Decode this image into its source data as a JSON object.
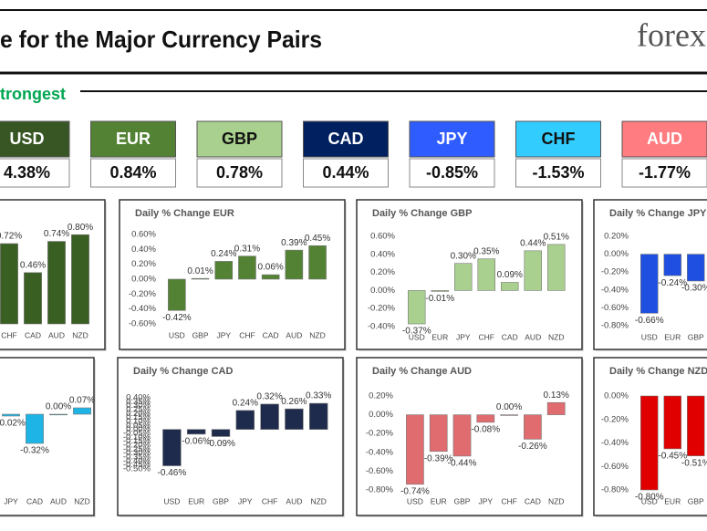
{
  "header": {
    "title": "e for the Major Currency Pairs",
    "logo": "forex"
  },
  "strength_label": "trongest",
  "tiles": [
    {
      "currency": "USD",
      "change": "4.38%",
      "color": "#375623",
      "text_color": "#ffffff"
    },
    {
      "currency": "EUR",
      "change": "0.84%",
      "color": "#548235",
      "text_color": "#ffffff"
    },
    {
      "currency": "GBP",
      "change": "0.78%",
      "color": "#a9d08e",
      "text_color": "#111111"
    },
    {
      "currency": "CAD",
      "change": "0.44%",
      "color": "#002060",
      "text_color": "#ffffff"
    },
    {
      "currency": "JPY",
      "change": "-0.85%",
      "color": "#2f5cff",
      "text_color": "#ffffff"
    },
    {
      "currency": "CHF",
      "change": "-1.53%",
      "color": "#33ccff",
      "text_color": "#111111"
    },
    {
      "currency": "AUD",
      "change": "-1.77%",
      "color": "#ff7c80",
      "text_color": "#ffffff"
    }
  ],
  "chart_data": [
    {
      "type": "bar",
      "categories": [
        "CHF",
        "CAD",
        "AUD",
        "NZD"
      ],
      "values": [
        0.72,
        0.46,
        0.74,
        0.8
      ],
      "value_labels": [
        "0.72%",
        "0.46%",
        "0.74%",
        "0.80%"
      ],
      "color": "#3a5f23",
      "ylim": [
        0,
        0.9
      ]
    },
    {
      "type": "bar",
      "title": "Daily % Change EUR",
      "categories": [
        "USD",
        "GBP",
        "JPY",
        "CHF",
        "CAD",
        "AUD",
        "NZD"
      ],
      "values": [
        -0.42,
        0.01,
        0.24,
        0.31,
        0.06,
        0.39,
        0.45
      ],
      "value_labels": [
        "-0.42%",
        "0.01%",
        "0.24%",
        "0.31%",
        "0.06%",
        "0.39%",
        "0.45%"
      ],
      "color": "#548235",
      "ylim": [
        -0.6,
        0.6
      ],
      "yticks": [
        {
          "value": 0.6,
          "label": "0.60%"
        },
        {
          "value": 0.4,
          "label": "0.40%"
        },
        {
          "value": 0.2,
          "label": "0.20%"
        },
        {
          "value": 0,
          "label": "0.00%"
        },
        {
          "value": -0.2,
          "label": "-0.20%"
        },
        {
          "value": -0.4,
          "label": "-0.40%"
        },
        {
          "value": -0.6,
          "label": "-0.60%"
        }
      ]
    },
    {
      "type": "bar",
      "title": "Daily % Change GBP",
      "categories": [
        "USD",
        "EUR",
        "JPY",
        "CHF",
        "CAD",
        "AUD",
        "NZD"
      ],
      "values": [
        -0.37,
        -0.01,
        0.3,
        0.35,
        0.09,
        0.44,
        0.51
      ],
      "value_labels": [
        "-0.37%",
        "-0.01%",
        "0.30%",
        "0.35%",
        "0.09%",
        "0.44%",
        "0.51%"
      ],
      "color": "#a9d08e",
      "ylim": [
        -0.4,
        0.6
      ],
      "yticks": [
        {
          "value": 0.6,
          "label": "0.60%"
        },
        {
          "value": 0.4,
          "label": "0.40%"
        },
        {
          "value": 0.2,
          "label": "0.20%"
        },
        {
          "value": 0,
          "label": "0.00%"
        },
        {
          "value": -0.2,
          "label": "-0.20%"
        },
        {
          "value": -0.4,
          "label": "-0.40%"
        }
      ]
    },
    {
      "type": "bar",
      "title": "Daily % Change JPY",
      "categories": [
        "USD",
        "EUR",
        "GBP"
      ],
      "values": [
        -0.66,
        -0.24,
        -0.3
      ],
      "value_labels": [
        "-0.66%",
        "-0.24%",
        "-0.30%"
      ],
      "color": "#1f4fe0",
      "ylim": [
        -0.8,
        0.2
      ],
      "yticks": [
        {
          "value": 0.2,
          "label": "0.20%"
        },
        {
          "value": 0,
          "label": "0.00%"
        },
        {
          "value": -0.2,
          "label": "-0.20%"
        },
        {
          "value": -0.4,
          "label": "-0.40%"
        },
        {
          "value": -0.6,
          "label": "-0.60%"
        },
        {
          "value": -0.8,
          "label": "-0.80%"
        }
      ]
    },
    {
      "type": "bar",
      "categories": [
        "JPY",
        "CAD",
        "AUD",
        "NZD"
      ],
      "values": [
        -0.02,
        -0.32,
        0.0,
        0.07
      ],
      "value_labels": [
        "-0.02%",
        "-0.32%",
        "0.00%",
        "0.07%"
      ],
      "color": "#1eb4e6",
      "ylim": [
        -0.8,
        0.2
      ]
    },
    {
      "type": "bar",
      "title": "Daily % Change CAD",
      "categories": [
        "USD",
        "EUR",
        "GBP",
        "JPY",
        "CHF",
        "AUD",
        "NZD"
      ],
      "values": [
        -0.46,
        -0.06,
        -0.09,
        0.24,
        0.32,
        0.26,
        0.33
      ],
      "value_labels": [
        "-0.46%",
        "-0.06%",
        "-0.09%",
        "0.24%",
        "0.32%",
        "0.26%",
        "0.33%"
      ],
      "color": "#1f2b4d",
      "ylim": [
        -0.5,
        0.4
      ],
      "yticks": [
        {
          "value": 0.4,
          "label": "0.40%"
        },
        {
          "value": 0.35,
          "label": "0.35%"
        },
        {
          "value": 0.3,
          "label": "0.30%"
        },
        {
          "value": 0.25,
          "label": "0.25%"
        },
        {
          "value": 0.2,
          "label": "0.20%"
        },
        {
          "value": 0.15,
          "label": "0.15%"
        },
        {
          "value": 0.1,
          "label": "0.10%"
        },
        {
          "value": 0.05,
          "label": "0.05%"
        },
        {
          "value": 0,
          "label": "0.00%"
        },
        {
          "value": -0.05,
          "label": "-0.05%"
        },
        {
          "value": -0.1,
          "label": "-0.10%"
        },
        {
          "value": -0.15,
          "label": "-0.15%"
        },
        {
          "value": -0.2,
          "label": "-0.20%"
        },
        {
          "value": -0.25,
          "label": "-0.25%"
        },
        {
          "value": -0.3,
          "label": "-0.30%"
        },
        {
          "value": -0.35,
          "label": "-0.35%"
        },
        {
          "value": -0.4,
          "label": "-0.40%"
        },
        {
          "value": -0.45,
          "label": "-0.45%"
        },
        {
          "value": -0.5,
          "label": "-0.50%"
        }
      ]
    },
    {
      "type": "bar",
      "title": "Daily % Change AUD",
      "categories": [
        "USD",
        "EUR",
        "GBP",
        "JPY",
        "CHF",
        "CAD",
        "NZD"
      ],
      "values": [
        -0.74,
        -0.39,
        -0.44,
        -0.08,
        0.0,
        -0.26,
        0.13
      ],
      "value_labels": [
        "-0.74%",
        "-0.39%",
        "-0.44%",
        "-0.08%",
        "0.00%",
        "-0.26%",
        "0.13%"
      ],
      "color": "#e06c70",
      "ylim": [
        -0.8,
        0.2
      ],
      "yticks": [
        {
          "value": 0.2,
          "label": "0.20%"
        },
        {
          "value": 0,
          "label": "0.00%"
        },
        {
          "value": -0.2,
          "label": "-0.20%"
        },
        {
          "value": -0.4,
          "label": "-0.40%"
        },
        {
          "value": -0.6,
          "label": "-0.60%"
        },
        {
          "value": -0.8,
          "label": "-0.80%"
        }
      ]
    },
    {
      "type": "bar",
      "title": "Daily % Change NZD",
      "categories": [
        "USD",
        "EUR",
        "GBP"
      ],
      "values": [
        -0.8,
        -0.45,
        -0.51
      ],
      "value_labels": [
        "-0.80%",
        "-0.45%",
        "-0.51%"
      ],
      "color": "#e00000",
      "ylim": [
        -0.8,
        0
      ],
      "yticks": [
        {
          "value": 0,
          "label": "0.00%"
        },
        {
          "value": -0.2,
          "label": "-0.20%"
        },
        {
          "value": -0.4,
          "label": "-0.40%"
        },
        {
          "value": -0.6,
          "label": "-0.60%"
        },
        {
          "value": -0.8,
          "label": "-0.80%"
        }
      ]
    }
  ]
}
